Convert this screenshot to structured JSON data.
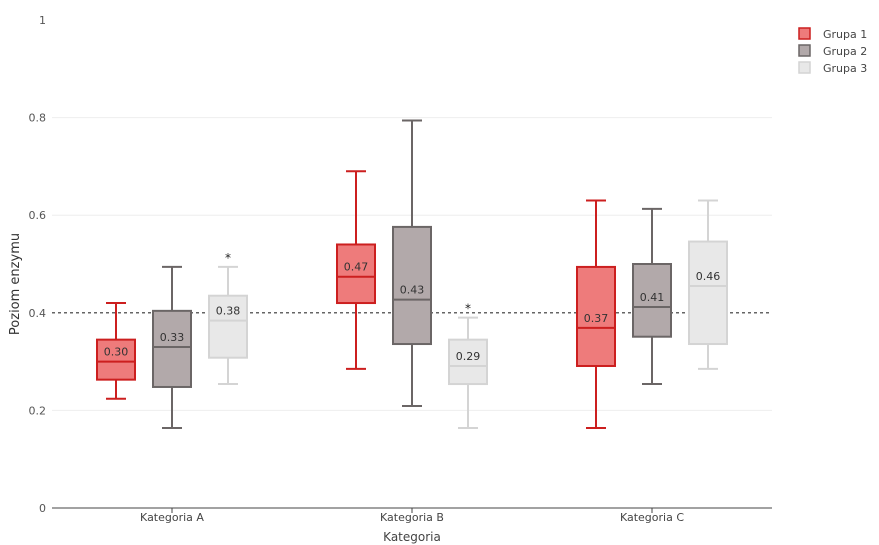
{
  "chart_data": {
    "type": "box",
    "title": "",
    "xlabel": "Kategoria",
    "ylabel": "Poziom enzymu",
    "ylim": [
      0,
      1
    ],
    "yticks": [
      "0",
      "0.2",
      "0.4",
      "0.6",
      "0.8",
      "1"
    ],
    "categories": [
      "Kategoria A",
      "Kategoria B",
      "Kategoria C"
    ],
    "reference_line": 0.4,
    "grid": true,
    "legend_position": "top-right",
    "series": [
      {
        "name": "Grupa 1",
        "fill": "#ee7b7b",
        "stroke": "#cc1f1f",
        "boxes": [
          {
            "min": 0.224,
            "q1": 0.263,
            "median": 0.3,
            "q3": 0.345,
            "max": 0.42,
            "label": "0.30",
            "star": false
          },
          {
            "min": 0.285,
            "q1": 0.42,
            "median": 0.474,
            "q3": 0.54,
            "max": 0.69,
            "label": "0.47",
            "star": false
          },
          {
            "min": 0.164,
            "q1": 0.291,
            "median": 0.369,
            "q3": 0.494,
            "max": 0.63,
            "label": "0.37",
            "star": false
          }
        ]
      },
      {
        "name": "Grupa 2",
        "fill": "#b2a9aa",
        "stroke": "#6b6666",
        "boxes": [
          {
            "min": 0.164,
            "q1": 0.248,
            "median": 0.33,
            "q3": 0.404,
            "max": 0.494,
            "label": "0.33",
            "star": false
          },
          {
            "min": 0.209,
            "q1": 0.336,
            "median": 0.427,
            "q3": 0.576,
            "max": 0.794,
            "label": "0.43",
            "star": false
          },
          {
            "min": 0.254,
            "q1": 0.351,
            "median": 0.412,
            "q3": 0.5,
            "max": 0.613,
            "label": "0.41",
            "star": false
          }
        ]
      },
      {
        "name": "Grupa 3",
        "fill": "#e8e8e8",
        "stroke": "#d4d4d4",
        "boxes": [
          {
            "min": 0.254,
            "q1": 0.308,
            "median": 0.384,
            "q3": 0.435,
            "max": 0.494,
            "label": "0.38",
            "star": true
          },
          {
            "min": 0.164,
            "q1": 0.254,
            "median": 0.291,
            "q3": 0.345,
            "max": 0.39,
            "label": "0.29",
            "star": true
          },
          {
            "min": 0.285,
            "q1": 0.336,
            "median": 0.455,
            "q3": 0.546,
            "max": 0.63,
            "label": "0.46",
            "star": false
          }
        ]
      }
    ],
    "star_symbol": "*"
  }
}
